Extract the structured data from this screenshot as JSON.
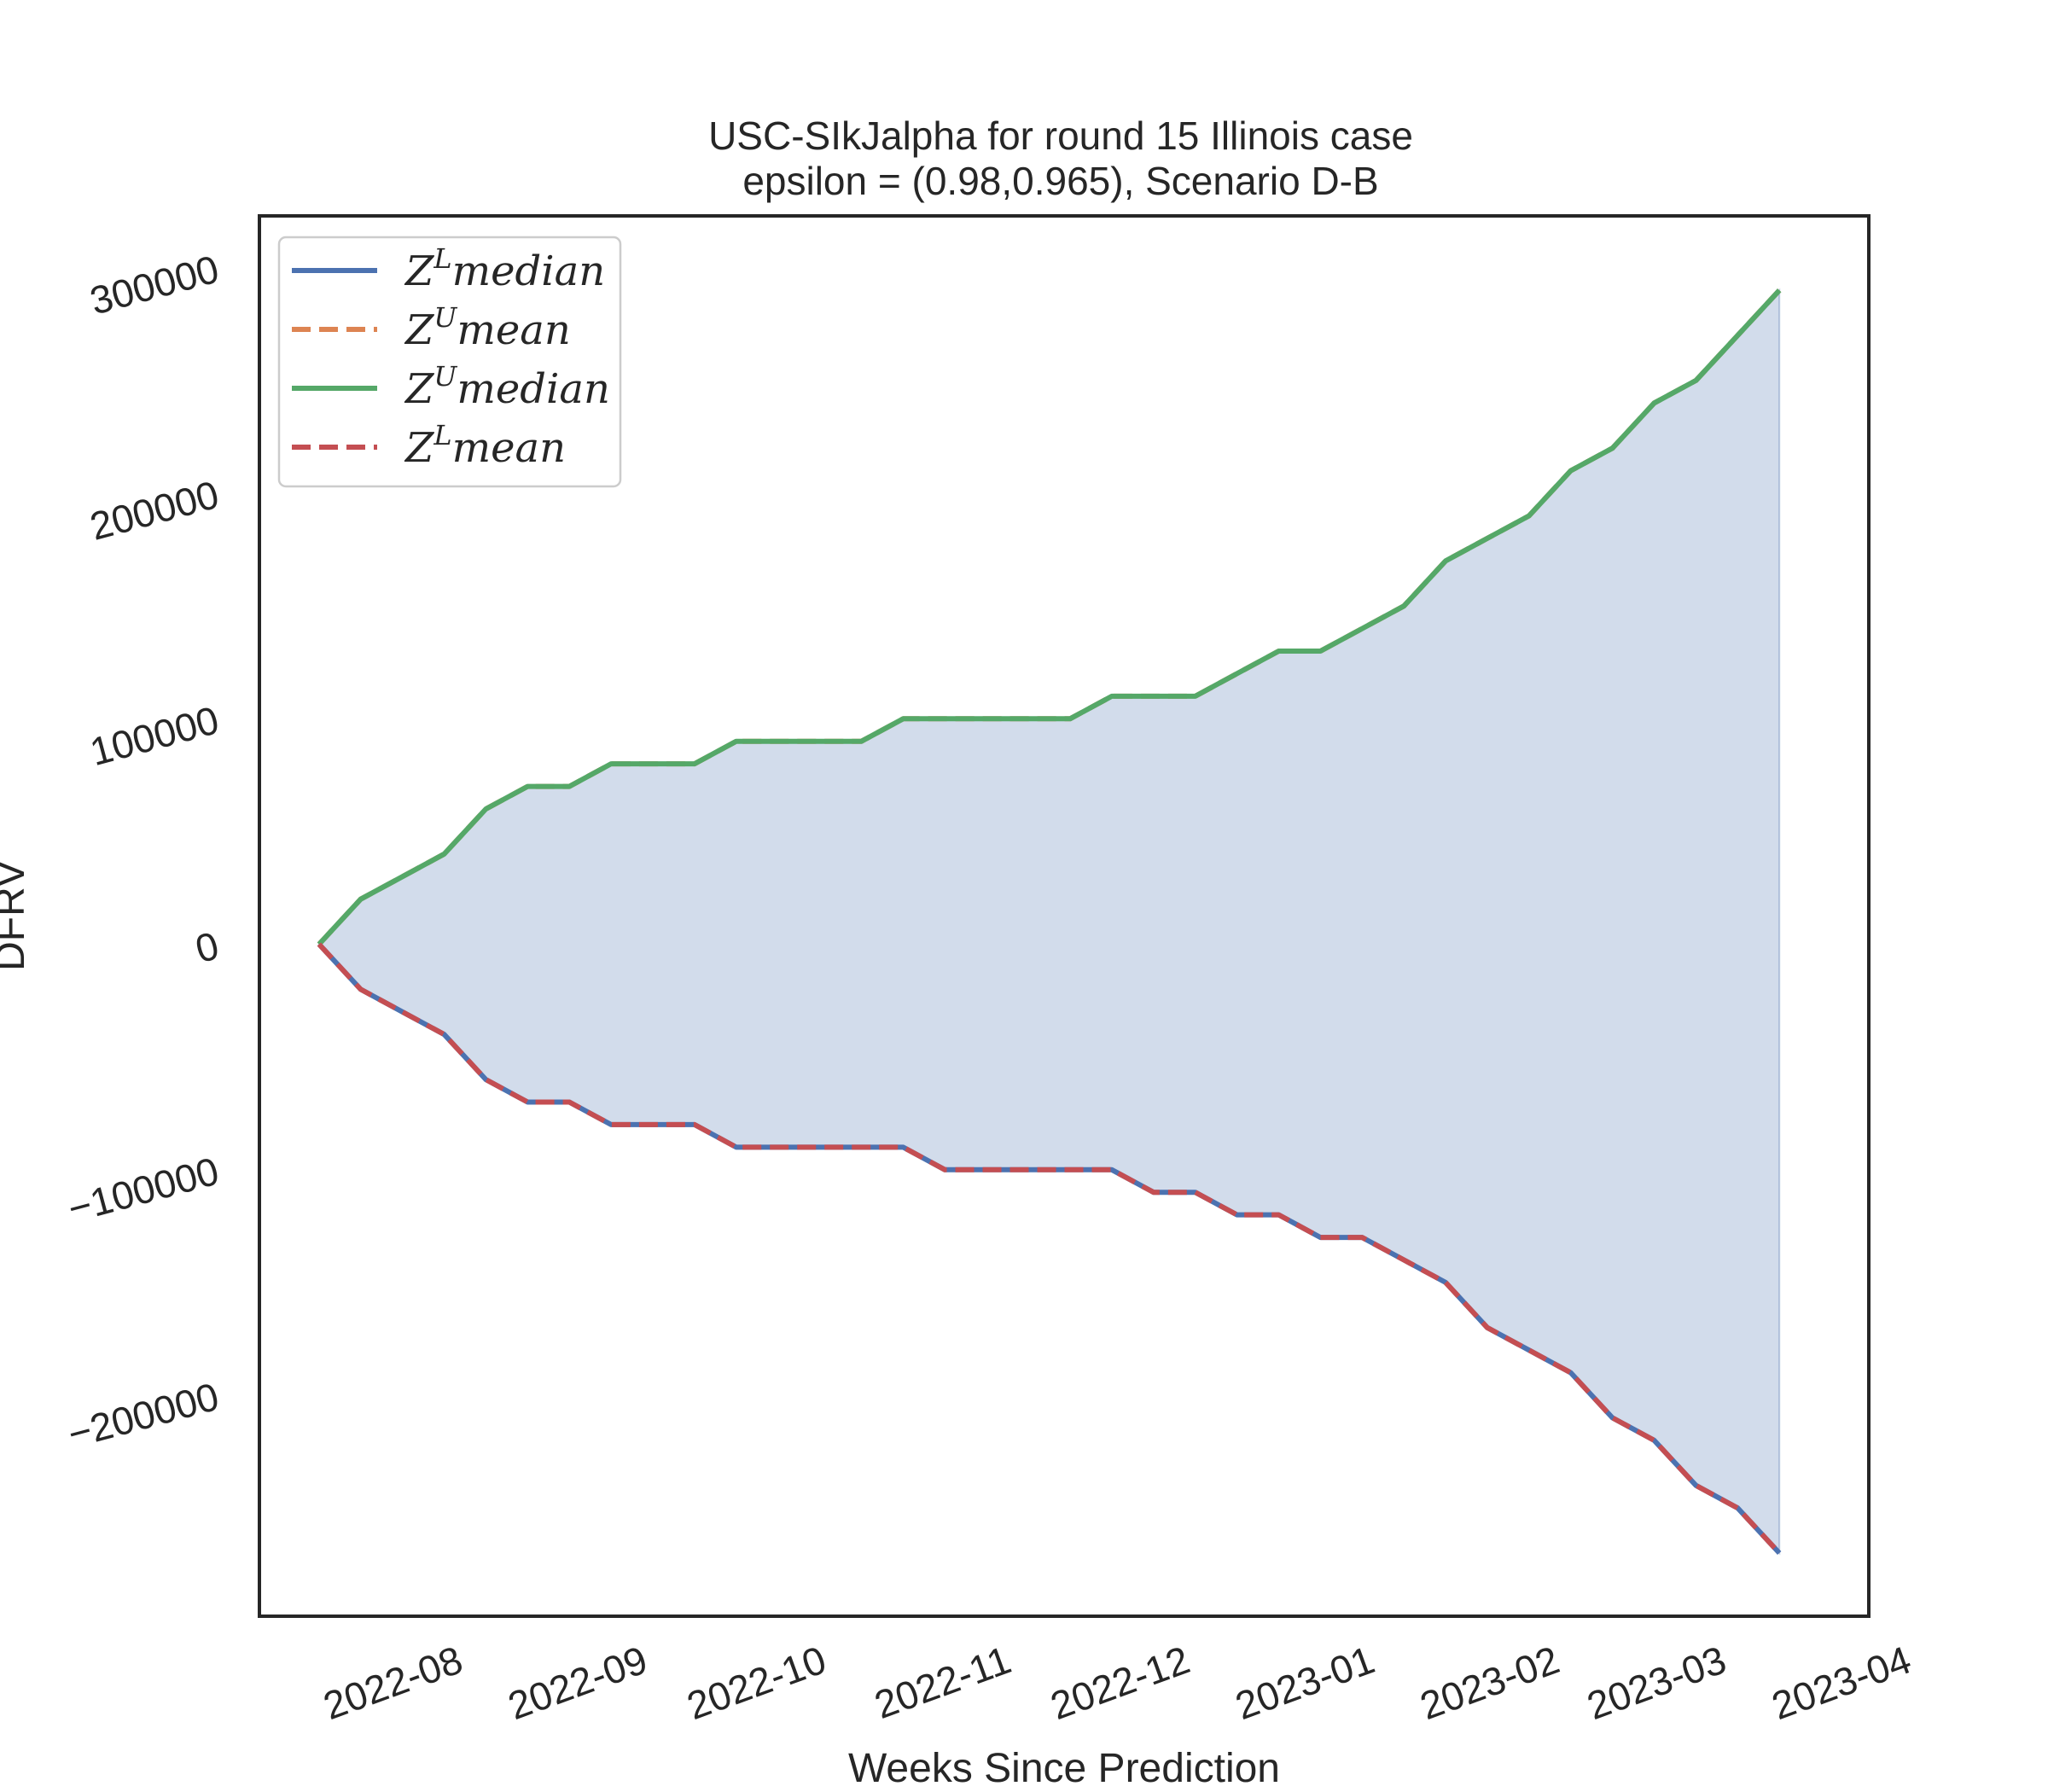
{
  "chart_data": {
    "type": "line",
    "title_line1": "USC-SIkJalpha for round 15 Illinois  case",
    "title_line2": "epsilon = (0.98,0.965), Scenario D-B",
    "xlabel": "Weeks Since Prediction",
    "ylabel": "DFRV",
    "x_ticks": [
      "2022-08",
      "2022-09",
      "2022-10",
      "2022-11",
      "2022-12",
      "2023-01",
      "2023-02",
      "2023-03",
      "2023-04"
    ],
    "y_ticks": [
      "300000",
      "200000",
      "100000",
      "0",
      "−100000",
      "−200000"
    ],
    "y_tick_values": [
      300000,
      200000,
      100000,
      0,
      -100000,
      -200000
    ],
    "ylim": [
      -298000,
      323000
    ],
    "xlim": [
      "2022-07-08",
      "2023-04-04"
    ],
    "grid": false,
    "legend_position": "upper left",
    "x": [
      "2022-07-18",
      "2022-07-25",
      "2022-08-01",
      "2022-08-08",
      "2022-08-15",
      "2022-08-22",
      "2022-08-29",
      "2022-09-05",
      "2022-09-12",
      "2022-09-19",
      "2022-09-26",
      "2022-10-03",
      "2022-10-10",
      "2022-10-17",
      "2022-10-24",
      "2022-10-31",
      "2022-11-07",
      "2022-11-14",
      "2022-11-21",
      "2022-11-28",
      "2022-12-05",
      "2022-12-12",
      "2022-12-19",
      "2022-12-26",
      "2023-01-02",
      "2023-01-09",
      "2023-01-16",
      "2023-01-23",
      "2023-01-30",
      "2023-02-06",
      "2023-02-13",
      "2023-02-20",
      "2023-02-27",
      "2023-03-06",
      "2023-03-13",
      "2023-03-20"
    ],
    "series": [
      {
        "name": "Z^L median",
        "legend_main": "Z",
        "legend_sup": "L",
        "legend_rest": "median",
        "color": "#4c72b0",
        "dash": "solid",
        "values": [
          0,
          -20000,
          -30000,
          -40000,
          -60000,
          -70000,
          -70000,
          -80000,
          -80000,
          -80000,
          -90000,
          -90000,
          -90000,
          -90000,
          -90000,
          -100000,
          -100000,
          -100000,
          -100000,
          -100000,
          -110000,
          -110000,
          -120000,
          -120000,
          -130000,
          -130000,
          -140000,
          -150000,
          -170000,
          -180000,
          -190000,
          -210000,
          -220000,
          -240000,
          -250000,
          -270000
        ]
      },
      {
        "name": "Z^U mean",
        "legend_main": "Z",
        "legend_sup": "U",
        "legend_rest": "mean",
        "color": "#dd8452",
        "dash": "dashed",
        "values": [
          0,
          20000,
          30000,
          40000,
          60000,
          70000,
          70000,
          80000,
          80000,
          80000,
          90000,
          90000,
          90000,
          90000,
          100000,
          100000,
          100000,
          100000,
          100000,
          110000,
          110000,
          110000,
          120000,
          130000,
          130000,
          140000,
          150000,
          170000,
          180000,
          190000,
          210000,
          220000,
          240000,
          250000,
          270000,
          290000
        ]
      },
      {
        "name": "Z^U median",
        "legend_main": "Z",
        "legend_sup": "U",
        "legend_rest": "median",
        "color": "#55a868",
        "dash": "solid",
        "values": [
          0,
          20000,
          30000,
          40000,
          60000,
          70000,
          70000,
          80000,
          80000,
          80000,
          90000,
          90000,
          90000,
          90000,
          100000,
          100000,
          100000,
          100000,
          100000,
          110000,
          110000,
          110000,
          120000,
          130000,
          130000,
          140000,
          150000,
          170000,
          180000,
          190000,
          210000,
          220000,
          240000,
          250000,
          270000,
          290000
        ]
      },
      {
        "name": "Z^L mean",
        "legend_main": "Z",
        "legend_sup": "L",
        "legend_rest": "mean",
        "color": "#c44e52",
        "dash": "dashed",
        "values": [
          0,
          -20000,
          -30000,
          -40000,
          -60000,
          -70000,
          -70000,
          -80000,
          -80000,
          -80000,
          -90000,
          -90000,
          -90000,
          -90000,
          -90000,
          -100000,
          -100000,
          -100000,
          -100000,
          -100000,
          -110000,
          -110000,
          -120000,
          -120000,
          -130000,
          -130000,
          -140000,
          -150000,
          -170000,
          -180000,
          -190000,
          -210000,
          -220000,
          -240000,
          -250000,
          -270000
        ]
      }
    ],
    "fill_between": {
      "upper": "Z^U median",
      "lower": "Z^L median",
      "color": "#4c72b0",
      "opacity": 0.25
    }
  }
}
